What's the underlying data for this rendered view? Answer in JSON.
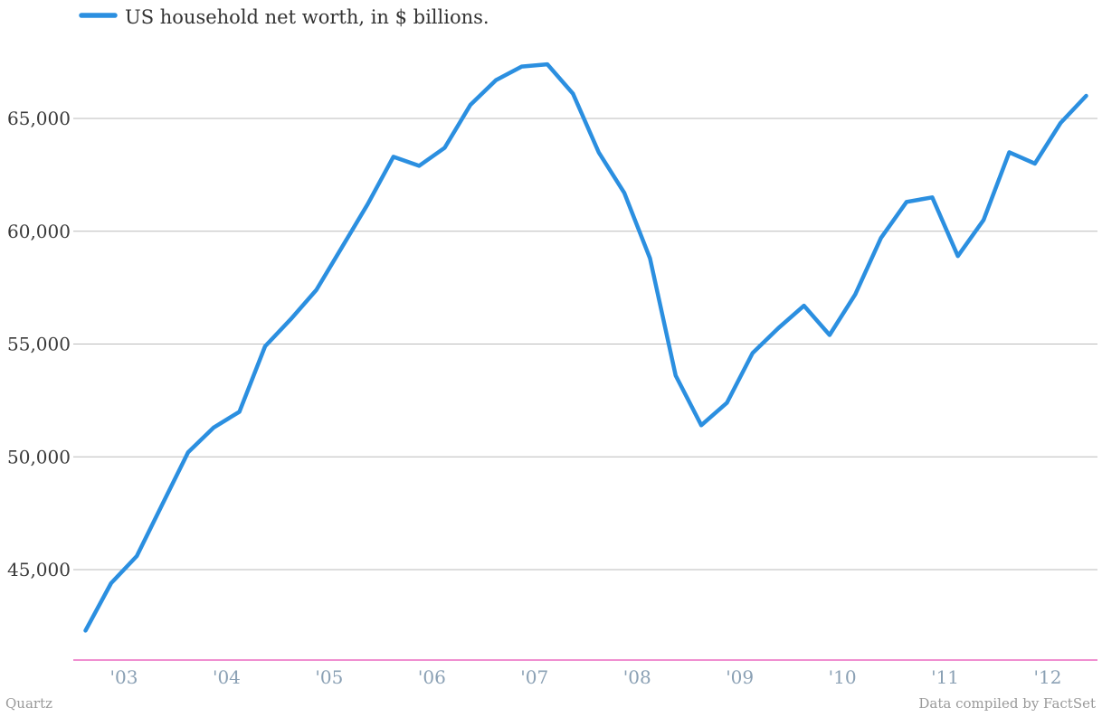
{
  "chart_data": {
    "type": "line",
    "title": "",
    "xlabel": "",
    "ylabel": "",
    "legend_position": "top-left",
    "grid": true,
    "ylim": [
      41000,
      67800
    ],
    "yticks": [
      45000,
      50000,
      55000,
      60000,
      65000
    ],
    "ytick_labels": [
      "45,000",
      "50,000",
      "55,000",
      "60,000",
      "65,000"
    ],
    "xticks": [
      2003,
      2004,
      2005,
      2006,
      2007,
      2008,
      2009,
      2010,
      2011,
      2012
    ],
    "xtick_labels": [
      "'03",
      "'04",
      "'05",
      "'06",
      "'07",
      "'08",
      "'09",
      "'10",
      "'11",
      "'12"
    ],
    "xlim": [
      2002.5,
      2012.55
    ],
    "colors": {
      "series": "#2b8fe0",
      "grid": "#bbbbbb",
      "baseline": "#e84cb4",
      "xtick": "#8aa0b4"
    },
    "series": [
      {
        "name": "US household net worth, in $ billions.",
        "x": [
          2002.625,
          2002.875,
          2003.125,
          2003.375,
          2003.625,
          2003.875,
          2004.125,
          2004.375,
          2004.625,
          2004.875,
          2005.125,
          2005.375,
          2005.625,
          2005.875,
          2006.125,
          2006.375,
          2006.625,
          2006.875,
          2007.125,
          2007.375,
          2007.625,
          2007.875,
          2008.125,
          2008.375,
          2008.625,
          2008.875,
          2009.125,
          2009.375,
          2009.625,
          2009.875,
          2010.125,
          2010.375,
          2010.625,
          2010.875,
          2011.125,
          2011.375,
          2011.625,
          2011.875,
          2012.125,
          2012.375
        ],
        "values": [
          42300,
          44400,
          45600,
          47900,
          50200,
          51300,
          52000,
          54900,
          56100,
          57400,
          59300,
          61200,
          63300,
          62900,
          63700,
          65600,
          66700,
          67300,
          67400,
          66100,
          63500,
          61700,
          58800,
          53600,
          51400,
          52400,
          54600,
          55700,
          56700,
          55400,
          57200,
          59700,
          61300,
          61500,
          58900,
          60500,
          63500,
          63000,
          64800,
          66000
        ]
      }
    ]
  },
  "footer": {
    "left": "Quartz",
    "right": "Data compiled by FactSet"
  }
}
